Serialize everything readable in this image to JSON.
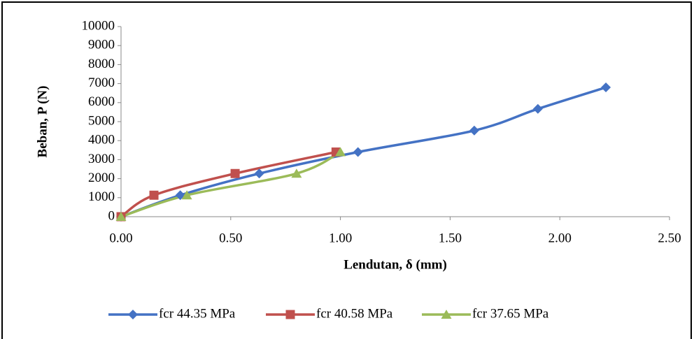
{
  "chart_data": {
    "type": "scatter-smooth",
    "x_label": "Lendutan, δ (mm)",
    "y_label": "Beban, P (N)",
    "xlim": [
      0,
      2.5
    ],
    "ylim": [
      0,
      10000
    ],
    "xticks": [
      {
        "value": 0,
        "label": "0.00"
      },
      {
        "value": 0.5,
        "label": "0.50"
      },
      {
        "value": 1,
        "label": "1.00"
      },
      {
        "value": 1.5,
        "label": "1.50"
      },
      {
        "value": 2,
        "label": "2.00"
      },
      {
        "value": 2.5,
        "label": "2.50"
      }
    ],
    "yticks": [
      0,
      1000,
      2000,
      3000,
      4000,
      5000,
      6000,
      7000,
      8000,
      9000,
      10000
    ],
    "series": [
      {
        "name": "fcr 44.35 MPa",
        "color": "#4472c4",
        "marker": "diamond",
        "x": [
          0,
          0.27,
          0.63,
          1.08,
          1.61,
          1.9,
          2.21
        ],
        "values": [
          0,
          1130,
          2270,
          3400,
          4530,
          5670,
          6800
        ]
      },
      {
        "name": "fcr 40.58 MPa",
        "color": "#c0504d",
        "marker": "square",
        "x": [
          0,
          0.15,
          0.52,
          0.98
        ],
        "values": [
          0,
          1130,
          2270,
          3400
        ]
      },
      {
        "name": "fcr 37.65 MPa",
        "color": "#9bbb59",
        "marker": "triangle",
        "x": [
          0,
          0.3,
          0.8,
          1.0
        ],
        "values": [
          0,
          1130,
          2270,
          3400
        ]
      }
    ]
  }
}
